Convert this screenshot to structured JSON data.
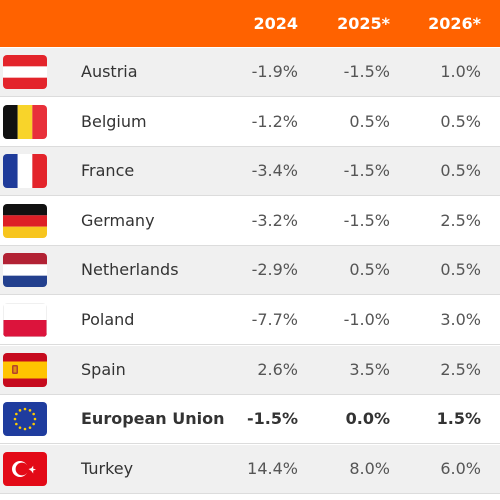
{
  "chart_data": {
    "type": "table",
    "columns": [
      "",
      "",
      "2024",
      "2025*",
      "2026*"
    ],
    "rows": [
      {
        "flag": "austria-flag",
        "country": "Austria",
        "y2024": "-1.9%",
        "y2025": "-1.5%",
        "y2026": "1.0%",
        "bold": false
      },
      {
        "flag": "belgium-flag",
        "country": "Belgium",
        "y2024": "-1.2%",
        "y2025": "0.5%",
        "y2026": "0.5%",
        "bold": false
      },
      {
        "flag": "france-flag",
        "country": "France",
        "y2024": "-3.4%",
        "y2025": "-1.5%",
        "y2026": "0.5%",
        "bold": false
      },
      {
        "flag": "germany-flag",
        "country": "Germany",
        "y2024": "-3.2%",
        "y2025": "-1.5%",
        "y2026": "2.5%",
        "bold": false
      },
      {
        "flag": "netherlands-flag",
        "country": "Netherlands",
        "y2024": "-2.9%",
        "y2025": "0.5%",
        "y2026": "0.5%",
        "bold": false
      },
      {
        "flag": "poland-flag",
        "country": "Poland",
        "y2024": "-7.7%",
        "y2025": "-1.0%",
        "y2026": "3.0%",
        "bold": false
      },
      {
        "flag": "spain-flag",
        "country": "Spain",
        "y2024": "2.6%",
        "y2025": "3.5%",
        "y2026": "2.5%",
        "bold": false
      },
      {
        "flag": "eu-flag",
        "country": "European Union",
        "y2024": "-1.5%",
        "y2025": "0.0%",
        "y2026": "1.5%",
        "bold": true
      },
      {
        "flag": "turkey-flag",
        "country": "Turkey",
        "y2024": "14.4%",
        "y2025": "8.0%",
        "y2026": "6.0%",
        "bold": false
      }
    ]
  },
  "colors": {
    "header_bg": "#ff6200",
    "header_text": "#ffffff",
    "row_shaded": "#f0f0f0",
    "row_white": "#ffffff"
  }
}
